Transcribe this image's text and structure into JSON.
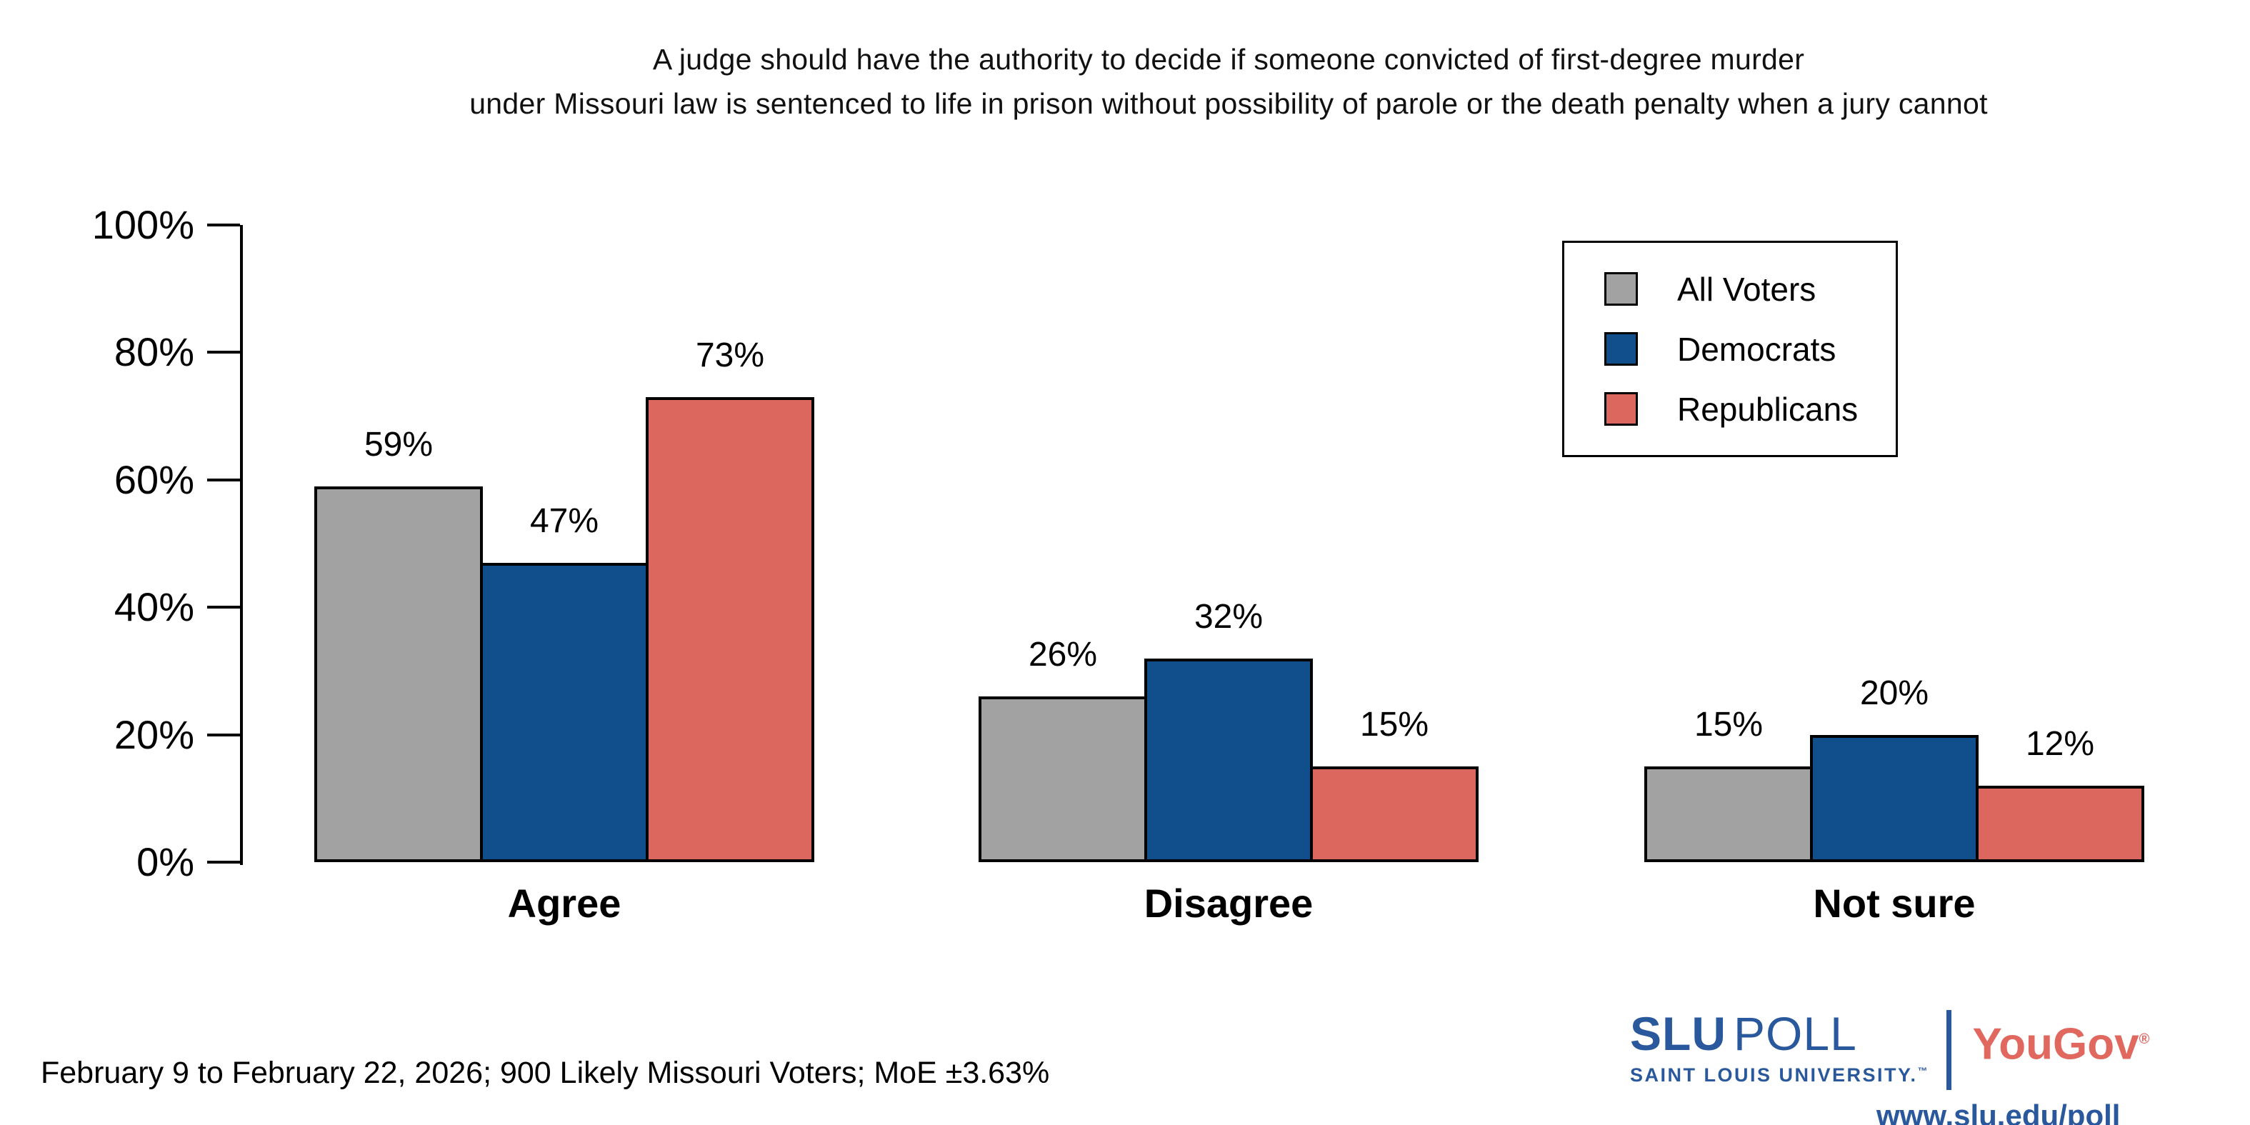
{
  "chart_data": {
    "type": "bar",
    "title": "A judge should have the authority to decide if someone convicted of first-degree murder under Missouri law is sentenced to life in prison without possibility of parole or the death penalty when a jury cannot",
    "title_lines": [
      "A judge should have the authority to decide if someone convicted of first-degree murder",
      "under Missouri law is sentenced to life in prison without possibility of parole or the death penalty when a jury cannot"
    ],
    "categories": [
      "Agree",
      "Disagree",
      "Not sure"
    ],
    "series": [
      {
        "name": "All Voters",
        "color": "#a2a2a2",
        "values": [
          59,
          26,
          15
        ]
      },
      {
        "name": "Democrats",
        "color": "#114e8c",
        "values": [
          47,
          32,
          20
        ]
      },
      {
        "name": "Republicans",
        "color": "#dc675e",
        "values": [
          73,
          15,
          12
        ]
      }
    ],
    "bar_value_labels": [
      [
        "59%",
        "47%",
        "73%"
      ],
      [
        "26%",
        "32%",
        "15%"
      ],
      [
        "15%",
        "20%",
        "12%"
      ]
    ],
    "unit": "%",
    "ylim": [
      0,
      100
    ],
    "y_ticks": [
      {
        "value": 0,
        "label": "0%"
      },
      {
        "value": 20,
        "label": "20%"
      },
      {
        "value": 40,
        "label": "40%"
      },
      {
        "value": 60,
        "label": "60%"
      },
      {
        "value": 80,
        "label": "80%"
      },
      {
        "value": 100,
        "label": "100%"
      }
    ],
    "grid": false,
    "legend_position": "top-right"
  },
  "footer": {
    "note": "February 9 to February 22, 2026; 900 Likely Missouri Voters; MoE ±3.63%",
    "slu_logo": {
      "primary_bold": "SLU",
      "primary_light": "POLL",
      "secondary": "SAINT LOUIS UNIVERSITY.",
      "trademark": "™"
    },
    "yougov_logo": {
      "text": "YouGov",
      "registered": "®"
    },
    "url": "www.slu.edu/poll"
  },
  "colors": {
    "axis": "#000000",
    "bar_outline": "#000000",
    "slu_blue": "#29589c",
    "yougov_red": "#e1685e"
  }
}
